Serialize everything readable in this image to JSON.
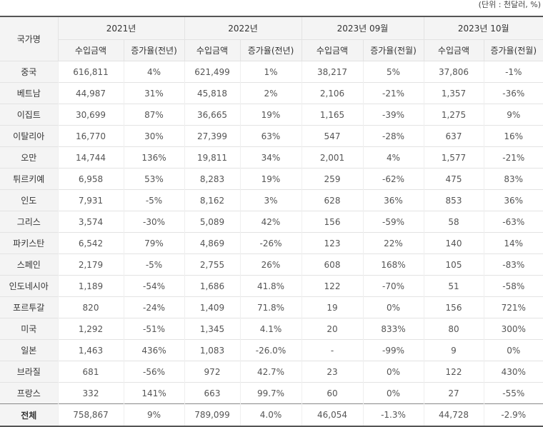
{
  "unit_note": "(단위 : 천달러, %)",
  "header": {
    "country_col": "국가명",
    "periods": [
      "2021년",
      "2022년",
      "2023년 09월",
      "2023년 10월"
    ],
    "sub_columns": [
      "수입금액",
      "증가율(전년)",
      "수입금액",
      "증가율(전년)",
      "수입금액",
      "증가율(전월)",
      "수입금액",
      "증가율(전월)"
    ]
  },
  "rows": [
    [
      "중국",
      "616,811",
      "4%",
      "621,499",
      "1%",
      "38,217",
      "5%",
      "37,806",
      "-1%"
    ],
    [
      "베트남",
      "44,987",
      "31%",
      "45,818",
      "2%",
      "2,106",
      "-21%",
      "1,357",
      "-36%"
    ],
    [
      "이집트",
      "30,699",
      "87%",
      "36,665",
      "19%",
      "1,165",
      "-39%",
      "1,275",
      "9%"
    ],
    [
      "이탈리아",
      "16,770",
      "30%",
      "27,399",
      "63%",
      "547",
      "-28%",
      "637",
      "16%"
    ],
    [
      "오만",
      "14,744",
      "136%",
      "19,811",
      "34%",
      "2,001",
      "4%",
      "1,577",
      "-21%"
    ],
    [
      "튀르키예",
      "6,958",
      "53%",
      "8,283",
      "19%",
      "259",
      "-62%",
      "475",
      "83%"
    ],
    [
      "인도",
      "7,931",
      "-5%",
      "8,162",
      "3%",
      "628",
      "36%",
      "853",
      "36%"
    ],
    [
      "그리스",
      "3,574",
      "-30%",
      "5,089",
      "42%",
      "156",
      "-59%",
      "58",
      "-63%"
    ],
    [
      "파키스탄",
      "6,542",
      "79%",
      "4,869",
      "-26%",
      "123",
      "22%",
      "140",
      "14%"
    ],
    [
      "스페인",
      "2,179",
      "-5%",
      "2,755",
      "26%",
      "608",
      "168%",
      "105",
      "-83%"
    ],
    [
      "인도네시아",
      "1,189",
      "-54%",
      "1,686",
      "41.8%",
      "122",
      "-70%",
      "51",
      "-58%"
    ],
    [
      "포르투갈",
      "820",
      "-24%",
      "1,409",
      "71.8%",
      "19",
      "0%",
      "156",
      "721%"
    ],
    [
      "미국",
      "1,292",
      "-51%",
      "1,345",
      "4.1%",
      "20",
      "833%",
      "80",
      "300%"
    ],
    [
      "일본",
      "1,463",
      "436%",
      "1,083",
      "-26.0%",
      "-",
      "-99%",
      "9",
      "0%"
    ],
    [
      "브라질",
      "681",
      "-56%",
      "972",
      "42.7%",
      "23",
      "0%",
      "122",
      "430%"
    ],
    [
      "프랑스",
      "332",
      "141%",
      "663",
      "99.7%",
      "60",
      "0%",
      "27",
      "-55%"
    ]
  ],
  "total": [
    "전체",
    "758,867",
    "9%",
    "789,099",
    "4.0%",
    "46,054",
    "-1.3%",
    "44,728",
    "-2.9%"
  ]
}
